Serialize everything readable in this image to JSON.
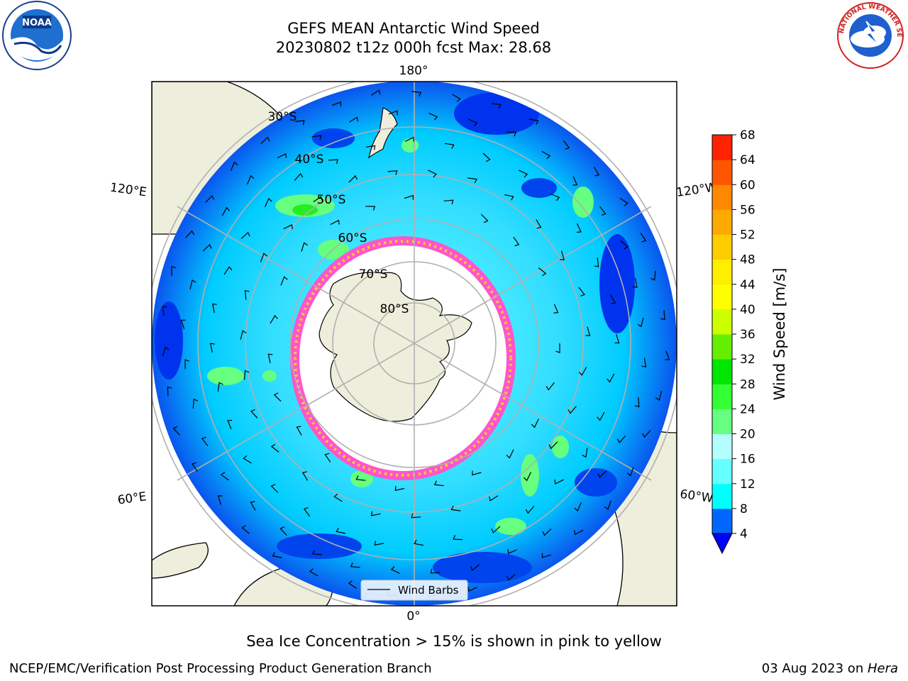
{
  "header": {
    "title": "GEFS MEAN Antarctic Wind Speed",
    "subtitle": "20230802 t12z 000h fcst   Max: 28.68"
  },
  "logos": {
    "left": "NOAA",
    "right": "NATIONAL WEATHER SERVICE"
  },
  "map": {
    "projection": "south-polar-stereographic",
    "longitude_labels": [
      "180°",
      "120°E",
      "120°W",
      "60°E",
      "60°W",
      "0°"
    ],
    "latitude_labels": [
      "30°S",
      "40°S",
      "50°S",
      "60°S",
      "70°S",
      "80°S"
    ],
    "legend_label": "Wind Barbs",
    "colors": {
      "land": "#eeeedc",
      "sea_ice_edge": "#ff66cc",
      "ice_interior": "#ffffff",
      "grid": "#b0b0b0"
    }
  },
  "colorbar": {
    "label": "Wind Speed [m/s]",
    "ticks": [
      "4",
      "8",
      "12",
      "16",
      "20",
      "24",
      "28",
      "32",
      "36",
      "40",
      "44",
      "48",
      "52",
      "56",
      "60",
      "64",
      "68"
    ],
    "colors": [
      "#0066ff",
      "#00ffff",
      "#66ffff",
      "#b3ffff",
      "#66ff80",
      "#33ff33",
      "#00e600",
      "#66ee00",
      "#ccff00",
      "#ffff00",
      "#ffee00",
      "#ffcc00",
      "#ffaa00",
      "#ff8800",
      "#ff5500",
      "#ff2200"
    ],
    "extend_color": "#0000ff"
  },
  "caption": "Sea Ice Concentration > 15% is shown in pink to yellow",
  "footer": {
    "left": "NCEP/EMC/Verification Post Processing Product Generation Branch",
    "right_date": "03 Aug 2023 on ",
    "right_host": "Hera"
  }
}
